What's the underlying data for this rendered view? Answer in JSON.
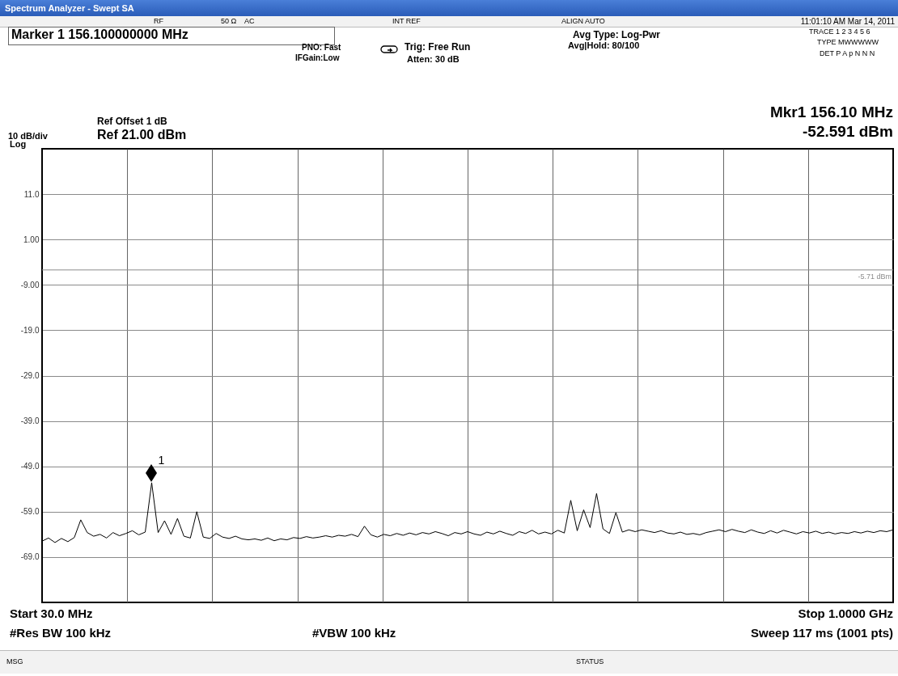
{
  "chart_data": {
    "type": "line",
    "title": "Spectrum Analyzer - Swept SA",
    "categories": [
      null,
      null,
      null,
      null,
      null,
      null,
      null,
      null,
      null,
      null,
      null,
      null,
      null,
      null,
      null,
      null,
      null,
      null,
      null,
      null,
      null,
      null,
      null,
      null,
      null,
      null,
      null,
      null,
      null,
      null,
      null,
      null,
      null,
      null,
      null,
      null,
      null,
      null,
      null,
      null,
      null,
      null,
      null,
      null,
      null,
      null,
      null,
      null,
      null,
      null,
      null,
      null,
      null,
      null,
      null,
      null,
      null,
      null,
      null,
      null,
      null,
      null,
      null,
      null,
      null,
      null,
      null,
      null,
      null,
      null,
      null,
      null,
      null,
      null,
      null,
      null,
      null,
      null,
      null,
      null,
      null,
      null,
      null,
      null,
      null,
      null,
      null,
      null,
      null,
      null,
      null,
      null,
      null,
      null,
      null,
      null,
      null,
      null,
      null,
      null,
      null,
      null,
      null,
      null,
      null,
      null,
      null,
      null,
      null,
      null,
      null,
      null,
      null,
      null,
      null,
      null,
      null,
      null,
      null,
      null,
      null,
      null,
      null,
      null,
      null,
      null,
      null,
      null,
      null,
      null,
      null,
      null,
      null
    ],
    "series": [
      {
        "color": "#000000",
        "values": [
          -65.5,
          -64.8,
          -65.8,
          -64.9,
          -65.6,
          -64.7,
          -60.8,
          -63.6,
          -64.4,
          -64.0,
          -64.8,
          -63.6,
          -64.3,
          -63.8,
          -63.2,
          -64.1,
          -63.5,
          -52.6,
          -63.6,
          -61.0,
          -64.0,
          -60.5,
          -64.4,
          -64.8,
          -59.0,
          -64.6,
          -64.9,
          -63.8,
          -64.6,
          -64.9,
          -64.4,
          -65.0,
          -65.2,
          -65.0,
          -65.3,
          -64.8,
          -65.4,
          -65.0,
          -65.2,
          -64.7,
          -64.9,
          -64.5,
          -64.8,
          -64.6,
          -64.3,
          -64.6,
          -64.2,
          -64.4,
          -64.0,
          -64.5,
          -62.2,
          -64.1,
          -64.6,
          -64.0,
          -64.3,
          -63.8,
          -64.2,
          -63.7,
          -64.1,
          -63.6,
          -63.9,
          -63.4,
          -63.8,
          -64.3,
          -63.6,
          -63.9,
          -63.4,
          -63.9,
          -64.2,
          -63.5,
          -63.9,
          -63.3,
          -63.8,
          -64.2,
          -63.4,
          -63.8,
          -63.1,
          -63.9,
          -63.5,
          -63.9,
          -63.1,
          -63.7,
          -56.5,
          -63.2,
          -58.6,
          -62.5,
          -55.0,
          -62.8,
          -63.8,
          -59.2,
          -63.5,
          -63.0,
          -63.4,
          -63.0,
          -63.3,
          -63.6,
          -63.2,
          -63.7,
          -63.9,
          -63.5,
          -64.0,
          -63.8,
          -64.1,
          -63.6,
          -63.3,
          -63.0,
          -63.4,
          -62.9,
          -63.3,
          -63.6,
          -63.0,
          -63.5,
          -63.8,
          -63.2,
          -63.7,
          -63.1,
          -63.5,
          -63.9,
          -63.4,
          -63.7,
          -63.3,
          -63.8,
          -63.5,
          -63.9,
          -63.6,
          -63.8,
          -63.4,
          -63.7,
          -63.3,
          -63.6,
          -63.2,
          -63.4,
          -63.0
        ]
      }
    ],
    "ylim": [
      -79,
      21
    ],
    "yticks": [
      {
        "value": 11,
        "label": "11.0"
      },
      {
        "value": 1,
        "label": "1.00"
      },
      {
        "value": -9,
        "label": "-9.00"
      },
      {
        "value": -19,
        "label": "-19.0"
      },
      {
        "value": -29,
        "label": "-29.0"
      },
      {
        "value": -39,
        "label": "-39.0"
      },
      {
        "value": -49,
        "label": "-49.0"
      },
      {
        "value": -59,
        "label": "-59.0"
      },
      {
        "value": -69,
        "label": "-69.0"
      }
    ],
    "grid": true,
    "ref_lines": [
      {
        "axis": "y",
        "value": -5.71,
        "label": "-5.71 dBm",
        "color": "#8c8c8c"
      }
    ],
    "annotations": [
      "RF",
      "50 Ω",
      "AC",
      "INT REF",
      "ALIGN AUTO",
      "11:01:10 AM Mar 14, 2011",
      "Marker 1  156.100000000 MHz",
      "PNO: Fast",
      "IFGain:Low",
      "Trig: Free Run",
      "Atten: 30 dB",
      "Avg Type: Log-Pwr",
      "Avg|Hold: 80/100",
      "TRACE 1 2 3 4 5 6",
      "TYPE MWWWWW",
      "DET P A p N N N",
      "Ref Offset 1 dB",
      "Ref 21.00 dBm",
      "10 dB/div",
      "Log",
      "Mkr1 156.10 MHz",
      "-52.591 dBm",
      "Start 30.0 MHz",
      "Stop 1.0000 GHz",
      "#Res BW 100 kHz",
      "#VBW 100 kHz",
      "Sweep  117 ms (1001 pts)",
      "MSG",
      "STATUS",
      "1"
    ]
  }
}
